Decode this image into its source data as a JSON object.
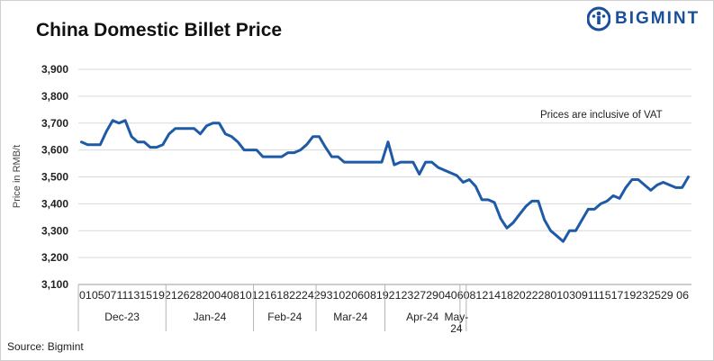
{
  "title": "China Domestic Billet Price",
  "brand": {
    "name": "BIGMINT",
    "color": "#1a4f9c"
  },
  "source": "Source: Bigmint",
  "chart_data": {
    "type": "line",
    "ylabel": "Price in RMB/t",
    "ylim": [
      3100,
      3900
    ],
    "yticks": [
      3100,
      3200,
      3300,
      3400,
      3500,
      3600,
      3700,
      3800,
      3900
    ],
    "ytick_labels": [
      "3,100",
      "3,200",
      "3,300",
      "3,400",
      "3,500",
      "3,600",
      "3,700",
      "3,800",
      "3,900"
    ],
    "grid": "horizontal",
    "line_color": "#1f5aa6",
    "annotation": "Prices are inclusive of VAT",
    "day_ticks": "010507111315192126282004081012161822242931020608192123272904060812141820222801030911151719232529 06",
    "months": [
      "Dec-23",
      "Jan-24",
      "Feb-24",
      "Mar-24",
      "Apr-24",
      "May-24"
    ],
    "month_spans": [
      14,
      14,
      10,
      11,
      12,
      1
    ],
    "series": [
      {
        "values": [
          3630,
          3620,
          3620,
          3620,
          3670,
          3710,
          3700,
          3710,
          3650,
          3630,
          3630,
          3610,
          3610,
          3620,
          3660,
          3680,
          3680,
          3680,
          3680,
          3660,
          3690,
          3700,
          3700,
          3660,
          3650,
          3630,
          3600,
          3600,
          3600,
          3575,
          3575,
          3575,
          3575,
          3590,
          3590,
          3600,
          3620,
          3650,
          3650,
          3610,
          3575,
          3575,
          3555,
          3555,
          3555,
          3555,
          3555,
          3555,
          3555,
          3630,
          3545,
          3555,
          3555,
          3555,
          3510,
          3555,
          3555,
          3535,
          3525,
          3515,
          3505,
          3480,
          3490,
          3465,
          3415,
          3415,
          3405,
          3345,
          3310,
          3330,
          3360,
          3390,
          3410,
          3410,
          3340,
          3300,
          3280,
          3260,
          3300,
          3300,
          3340,
          3380,
          3380,
          3400,
          3410,
          3430,
          3420,
          3460,
          3490,
          3490,
          3470,
          3450,
          3470,
          3480,
          3470,
          3460,
          3460,
          3500
        ]
      }
    ]
  }
}
